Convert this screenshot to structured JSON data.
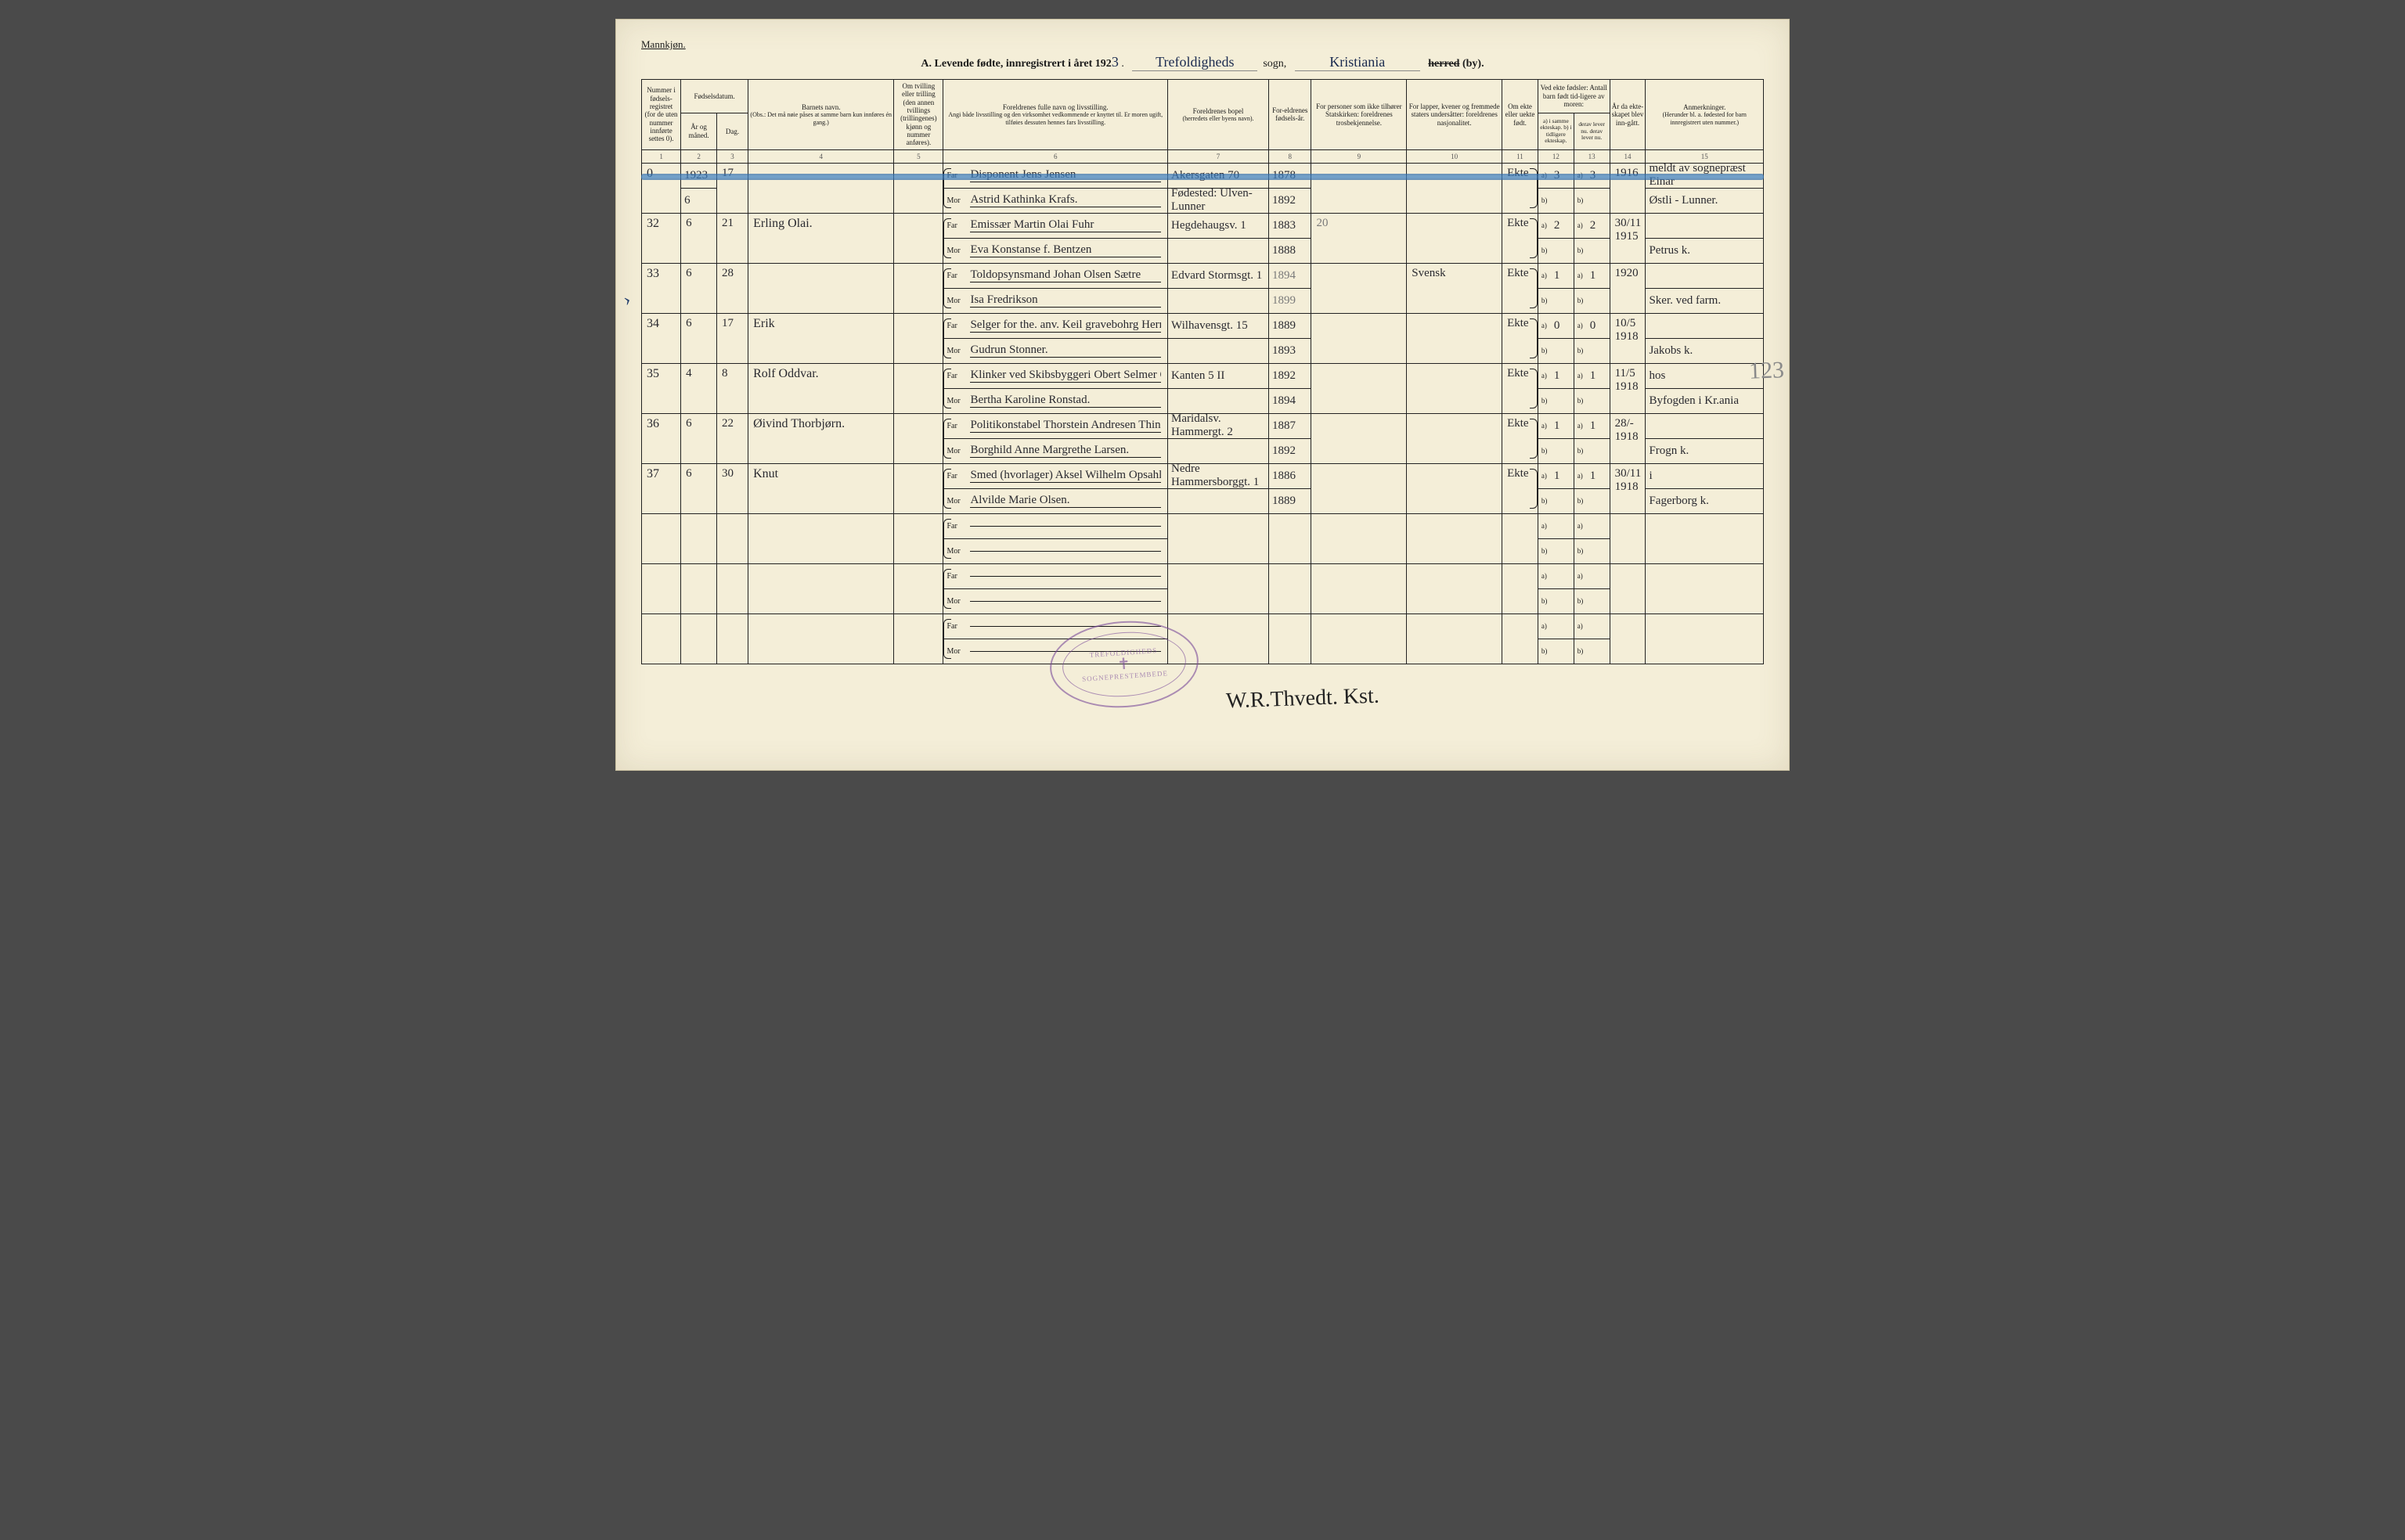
{
  "header": {
    "gender_label": "Mannkjøn.",
    "title_prefix": "A.  Levende fødte, innregistrert i året 192",
    "year_digit": "3",
    "sogn_script": "Trefoldigheds",
    "sogn_label": "sogn,",
    "herred_script": "Kristiania",
    "herred_label_struck": "herred",
    "by_label": "(by)."
  },
  "columns": {
    "c1": "Nummer i fødsels-registret (for de uten nummer innførte settes 0).",
    "c2_3_group": "Fødselsdatum.",
    "c2": "År og måned.",
    "c3": "Dag.",
    "c4": "Barnets navn.",
    "c4_sub": "(Obs.: Det må nøie påses at samme barn kun innføres én gang.)",
    "c5": "Om tvilling eller trilling (den annen tvillings (trillingenes) kjønn og nummer anføres).",
    "c6": "Foreldrenes fulle navn og livsstilling.",
    "c6_sub": "Angi både livsstilling og den virksomhet vedkommende er knyttet til. Er moren ugift, tilføies dessuten hennes fars livsstilling.",
    "c7": "Foreldrenes bopel",
    "c7_sub": "(herredets eller byens navn).",
    "c8": "For-eldrenes fødsels-år.",
    "c9": "For personer som ikke tilhører Statskirken: foreldrenes trosbekjennelse.",
    "c10": "For lapper, kvener og fremmede staters undersåtter: foreldrenes nasjonalitet.",
    "c11": "Om ekte eller uekte født.",
    "c12_13_group": "Ved ekte fødsler: Antall barn født tid-ligere av moren:",
    "c12": "a) i samme ekteskap.  b) i tidligere ekteskap.",
    "c13": "derav lever nu.  derav lever nu.",
    "c14": "År da ekte-skapet blev inn-gått.",
    "c15": "Anmerkninger.",
    "c15_sub": "(Herunder bl. a. fødested for barn innregistrert uten nummer.)",
    "far": "Far",
    "mor": "Mor",
    "a": "a)",
    "b": "b)"
  },
  "colnums": [
    "1",
    "2",
    "3",
    "4",
    "5",
    "6",
    "7",
    "8",
    "9",
    "10",
    "11",
    "12",
    "13",
    "14",
    "15"
  ],
  "year_entry": "1923",
  "rows": [
    {
      "num": "0",
      "ym": "6",
      "day": "17",
      "name": "",
      "far": "Disponent Jens Jensen",
      "mor": "Astrid Kathinka Krafs.",
      "bopel_far": "Akersgaten 70",
      "bopel_mor": "Fødested: Ulven-Lunner",
      "far_year": "1878",
      "mor_year": "1892",
      "tros": "",
      "nasj": "",
      "ekte": "Ekte",
      "a_same": "3",
      "a_lever": "3",
      "year_m": "1916",
      "anm1": "meldt av sognepræst Einar",
      "anm2": "Østli - Lunner."
    },
    {
      "num": "32",
      "ym": "6",
      "day": "21",
      "name": "Erling Olai.",
      "far": "Emissær Martin Olai Fuhr",
      "mor": "Eva Konstanse f. Bentzen",
      "bopel_far": "Hegdehaugsv. 1",
      "bopel_mor": "",
      "far_year": "1883",
      "mor_year": "1888",
      "tros": "20",
      "nasj": "",
      "ekte": "Ekte",
      "a_same": "2",
      "a_lever": "2",
      "year_m": "30/11 1915",
      "anm1": "",
      "anm2": "Petrus k."
    },
    {
      "num": "33",
      "ym": "6",
      "day": "28",
      "name": "",
      "far": "Toldopsynsmand Johan Olsen Sætre",
      "mor": "Isa Fredrikson",
      "bopel_far": "Edvard Stormsgt. 1",
      "bopel_mor": "",
      "far_year": "1894",
      "mor_year": "1899",
      "tros": "",
      "nasj": "Svensk",
      "ekte": "Ekte",
      "a_same": "1",
      "a_lever": "1",
      "year_m": "1920",
      "anm1": "",
      "anm2": "Sker. ved farm."
    },
    {
      "num": "34",
      "ym": "6",
      "day": "17",
      "name": "Erik",
      "far": "Selger for the. anv. Keil gravebohrg Herman Tangnes",
      "mor": "Gudrun Stonner.",
      "bopel_far": "Wilhavensgt. 15",
      "bopel_mor": "",
      "far_year": "1889",
      "mor_year": "1893",
      "tros": "",
      "nasj": "",
      "ekte": "Ekte",
      "a_same": "0",
      "a_lever": "0",
      "year_m": "10/5 1918",
      "anm1": "",
      "anm2": "Jakobs k."
    },
    {
      "num": "35",
      "ym": "4",
      "day": "8",
      "name": "Rolf Oddvar.",
      "far": "Klinker ved Skibsbyggeri  Obert Selmer Olsen.",
      "mor": "Bertha Karoline Ronstad.",
      "bopel_far": "Kanten 5 II",
      "bopel_mor": "",
      "far_year": "1892",
      "mor_year": "1894",
      "tros": "",
      "nasj": "",
      "ekte": "Ekte",
      "a_same": "1",
      "a_lever": "1",
      "year_m": "11/5 1918",
      "anm1": "hos",
      "anm2": "Byfogden i Kr.ania"
    },
    {
      "num": "36",
      "ym": "6",
      "day": "22",
      "name": "Øivind Thorbjørn.",
      "far": "Politikonstabel Thorstein Andresen Thinkelsrud",
      "mor": "Borghild Anne Margrethe Larsen.",
      "bopel_far": "Maridalsv. Hammergt. 2",
      "bopel_mor": "",
      "far_year": "1887",
      "mor_year": "1892",
      "tros": "",
      "nasj": "",
      "ekte": "Ekte",
      "a_same": "1",
      "a_lever": "1",
      "year_m": "28/- 1918",
      "anm1": "",
      "anm2": "Frogn k."
    },
    {
      "num": "37",
      "ym": "6",
      "day": "30",
      "name": "Knut",
      "far": "Smed (hvorlager) Aksel Wilhelm Opsahl",
      "mor": "Alvilde Marie Olsen.",
      "bopel_far": "Nedre Hammersborggt. 1",
      "bopel_mor": "",
      "far_year": "1886",
      "mor_year": "1889",
      "tros": "",
      "nasj": "",
      "ekte": "Ekte",
      "a_same": "1",
      "a_lever": "1",
      "year_m": "30/11 1918",
      "anm1": "i",
      "anm2": "Fagerborg k."
    }
  ],
  "empty_rows": 3,
  "stamp": {
    "top": "TREFOLDIGHEDS",
    "bottom": "SOGNEPRESTEMBEDE"
  },
  "signature": "W.R.Thvedt. Kst.",
  "margin_number": "123",
  "colors": {
    "paper": "#f4eed8",
    "ink": "#1a1a1a",
    "script_ink": "#2a2a30",
    "pencil": "#7a7a7a",
    "blue_stripe": "#3d83c7",
    "stamp": "#7a4a9a",
    "border": "#222222"
  },
  "col_widths_pct": [
    3.5,
    3.2,
    2.8,
    13,
    4.4,
    20,
    9,
    3.8,
    8.5,
    8.5,
    3.2,
    3.2,
    3.2,
    3.2,
    10.5
  ]
}
